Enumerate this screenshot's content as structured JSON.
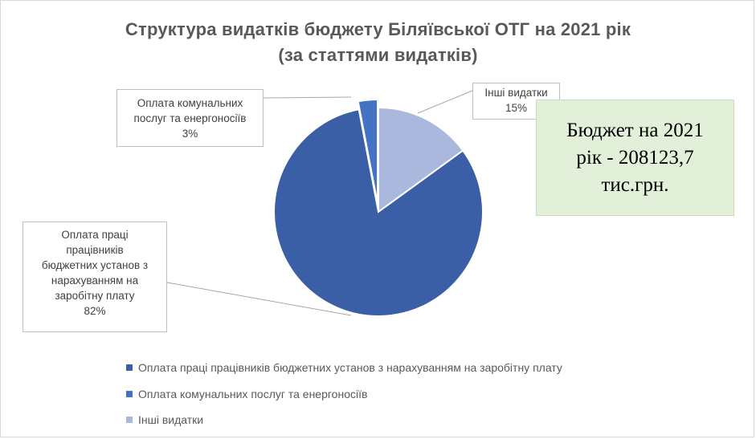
{
  "chart_data": {
    "type": "pie",
    "title": "Структура видатків бюджету Біляївської ОТГ на 2021 рік",
    "subtitle": "(за статтями видатків)",
    "slices": [
      {
        "name": "Оплата праці працівників бюджетних установ з нарахуванням на заробітну плату",
        "label_lines": [
          "Оплата праці",
          "працівників",
          "бюджетних установ з",
          "нарахуванням на",
          "заробітну плату"
        ],
        "value": 82,
        "percent_label": "82%",
        "color": "#3a5fa6"
      },
      {
        "name": "Оплата комунальних послуг та енергоносіїв",
        "label_lines": [
          "Оплата комунальних",
          "послуг та енергоносіїв"
        ],
        "value": 3,
        "percent_label": "3%",
        "color": "#4472c4"
      },
      {
        "name": "Інші видатки",
        "label_lines": [
          "Інші видатки"
        ],
        "value": 15,
        "percent_label": "15%",
        "color": "#a9b8dc"
      }
    ],
    "legend_position": "bottom",
    "annotation_lines": [
      "Бюджет на 2021",
      "рік - 208123,7",
      "тис.грн."
    ]
  }
}
